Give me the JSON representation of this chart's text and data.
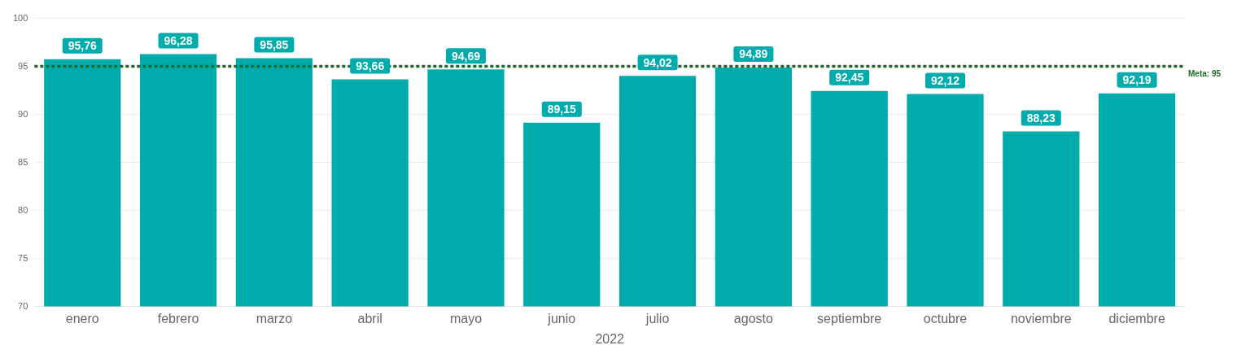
{
  "chart_data": {
    "type": "bar",
    "xlabel": "2022",
    "categories": [
      "enero",
      "febrero",
      "marzo",
      "abril",
      "mayo",
      "junio",
      "julio",
      "agosto",
      "septiembre",
      "octubre",
      "noviembre",
      "diciembre"
    ],
    "values": [
      95.76,
      96.28,
      95.85,
      93.66,
      94.69,
      89.15,
      94.02,
      94.89,
      92.45,
      92.12,
      88.23,
      92.19
    ],
    "value_labels": [
      "95,76",
      "96,28",
      "95,85",
      "93,66",
      "94,69",
      "89,15",
      "94,02",
      "94,89",
      "92,45",
      "92,12",
      "88,23",
      "92,19"
    ],
    "color": "#00abab",
    "ylim": [
      70,
      100
    ],
    "yticks": [
      70,
      75,
      80,
      85,
      90,
      95,
      100
    ],
    "grid": "y",
    "legend": false,
    "ref_lines": [
      {
        "axis": "y",
        "value": 95,
        "label": "Meta: 95",
        "color": "#1d6b26",
        "line_style": "dotted"
      }
    ]
  }
}
